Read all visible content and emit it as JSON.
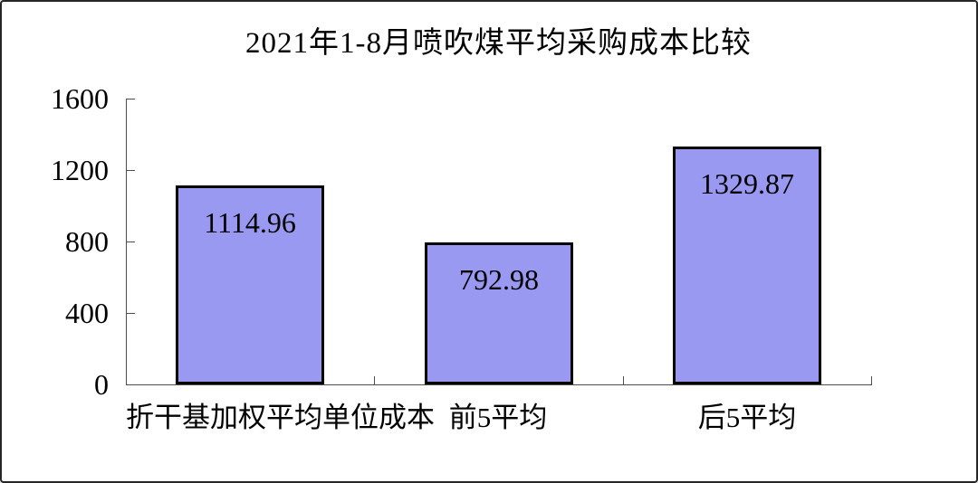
{
  "chart_data": {
    "type": "bar",
    "title": "2021年1-8月喷吹煤平均采购成本比较",
    "categories": [
      "折干基加权平均单位成本",
      "前5平均",
      "后5平均"
    ],
    "values": [
      1114.96,
      792.98,
      1329.87
    ],
    "value_labels": [
      "1114.96",
      "792.98",
      "1329.87"
    ],
    "yticks": [
      0,
      400,
      800,
      1200,
      1600
    ],
    "ytick_labels": [
      "0",
      "400",
      "800",
      "1200",
      "1600"
    ],
    "ylim": [
      0,
      1600
    ],
    "xlabel": "",
    "ylabel": "",
    "grid": false,
    "legend": "none",
    "tick_style": "inside",
    "colors": {
      "bar_fill": "#9999F2",
      "bar_border": "#000000",
      "axis": "#4d4d4d",
      "text": "#000000",
      "background": "#ffffff",
      "frame_border": "#262626"
    }
  }
}
